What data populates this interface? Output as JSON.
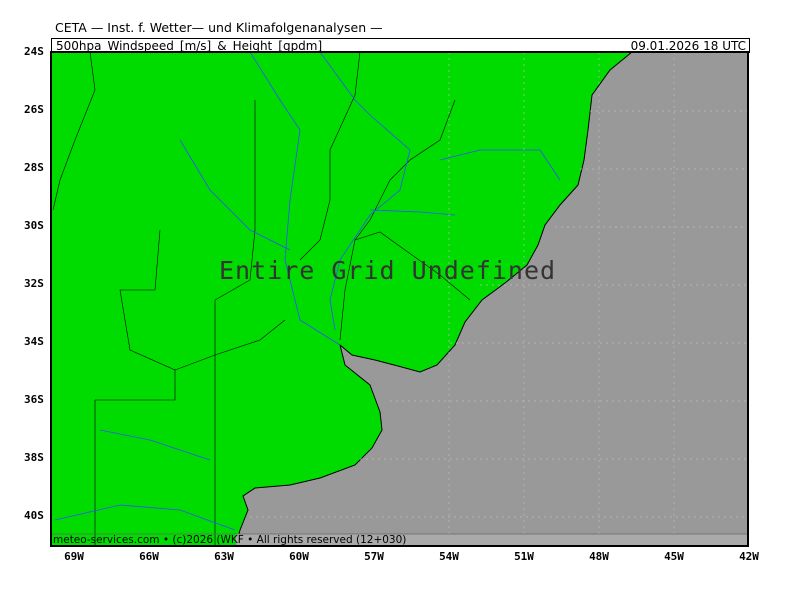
{
  "header": {
    "title": "CETA — Inst. f. Wetter— und Klimafolgenanalysen —",
    "subtitle": "500hpa_Windspeed_[m/s]_&_Height_[gpdm]",
    "valid_time": "09.01.2026 18 UTC"
  },
  "map": {
    "message": "Entire Grid Undefined",
    "footer": "meteo-services.com • (c)2026 (WKF • All rights reserved (12+030)",
    "lat_labels": [
      "24S",
      "26S",
      "28S",
      "30S",
      "32S",
      "34S",
      "36S",
      "38S",
      "40S"
    ],
    "lon_labels": [
      "69W",
      "66W",
      "63W",
      "60W",
      "57W",
      "54W",
      "51W",
      "48W",
      "45W",
      "42W"
    ],
    "colors": {
      "land": "#00dc00",
      "ocean": "#999999",
      "rivers": "#3050ff",
      "borders": "#000000",
      "footer_band": "#aaaaaa"
    }
  }
}
